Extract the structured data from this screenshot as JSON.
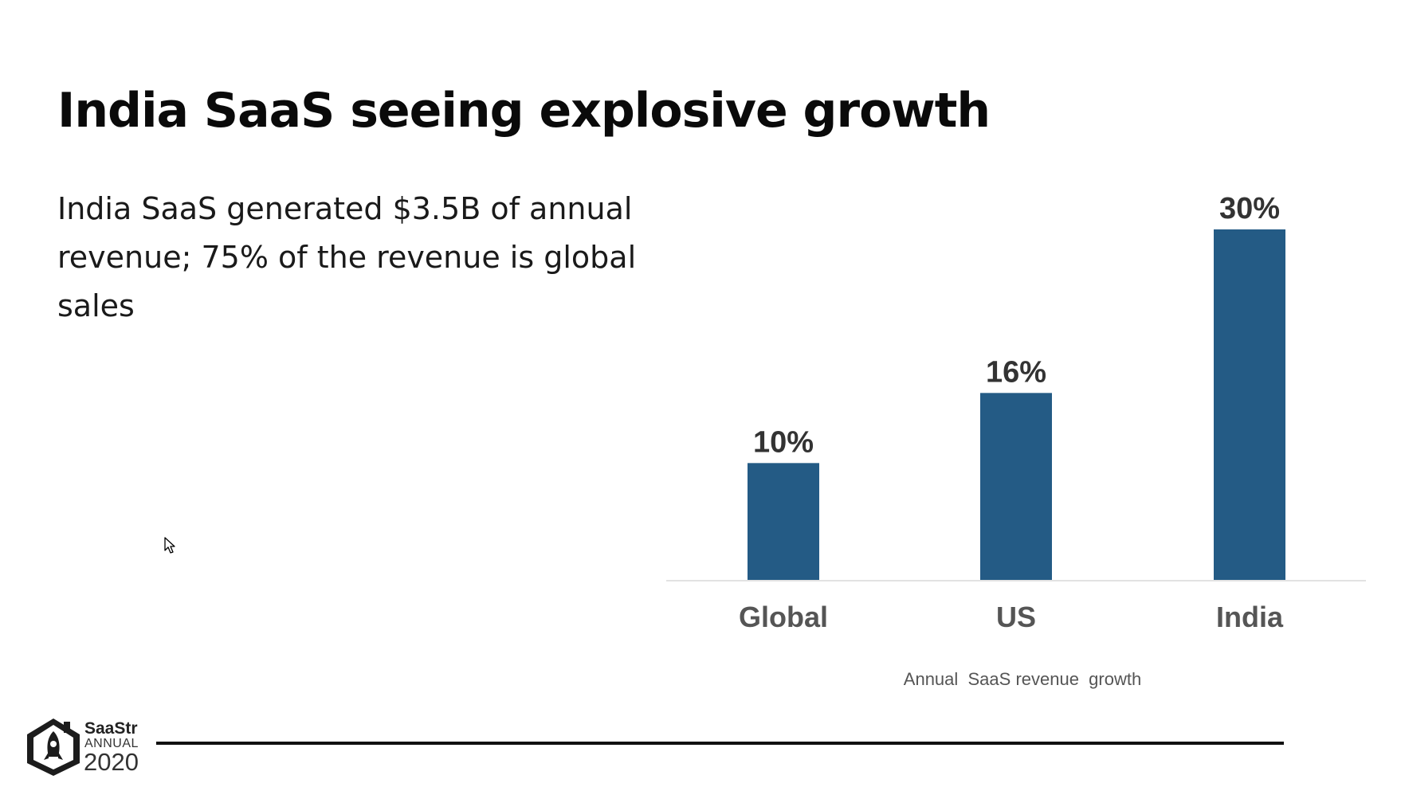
{
  "slide": {
    "title": "India SaaS seeing explosive growth",
    "body": "India SaaS generated $3.5B of annual revenue; 75% of the revenue is global sales"
  },
  "chart_data": {
    "type": "bar",
    "categories": [
      "Global",
      "US",
      "India"
    ],
    "values": [
      10,
      16,
      30
    ],
    "value_labels": [
      "10%",
      "16%",
      "30%"
    ],
    "xlabel": "Annual  SaaS revenue  growth",
    "ylabel": "",
    "ylim": [
      0,
      30
    ],
    "grid": false,
    "bar_color": "#245b85"
  },
  "footer": {
    "logo_brand": "SaaStr",
    "logo_event": "ANNUAL",
    "logo_year": "2020"
  },
  "colors": {
    "title": "#0a0a0a",
    "body_text": "#1a1a1a",
    "bar": "#245b85",
    "value_label": "#333333",
    "category_label": "#555555",
    "footer_rule": "#111111"
  },
  "icons": {
    "cursor": "mouse-pointer-icon",
    "logo": "saastr-rocket-house-icon"
  }
}
